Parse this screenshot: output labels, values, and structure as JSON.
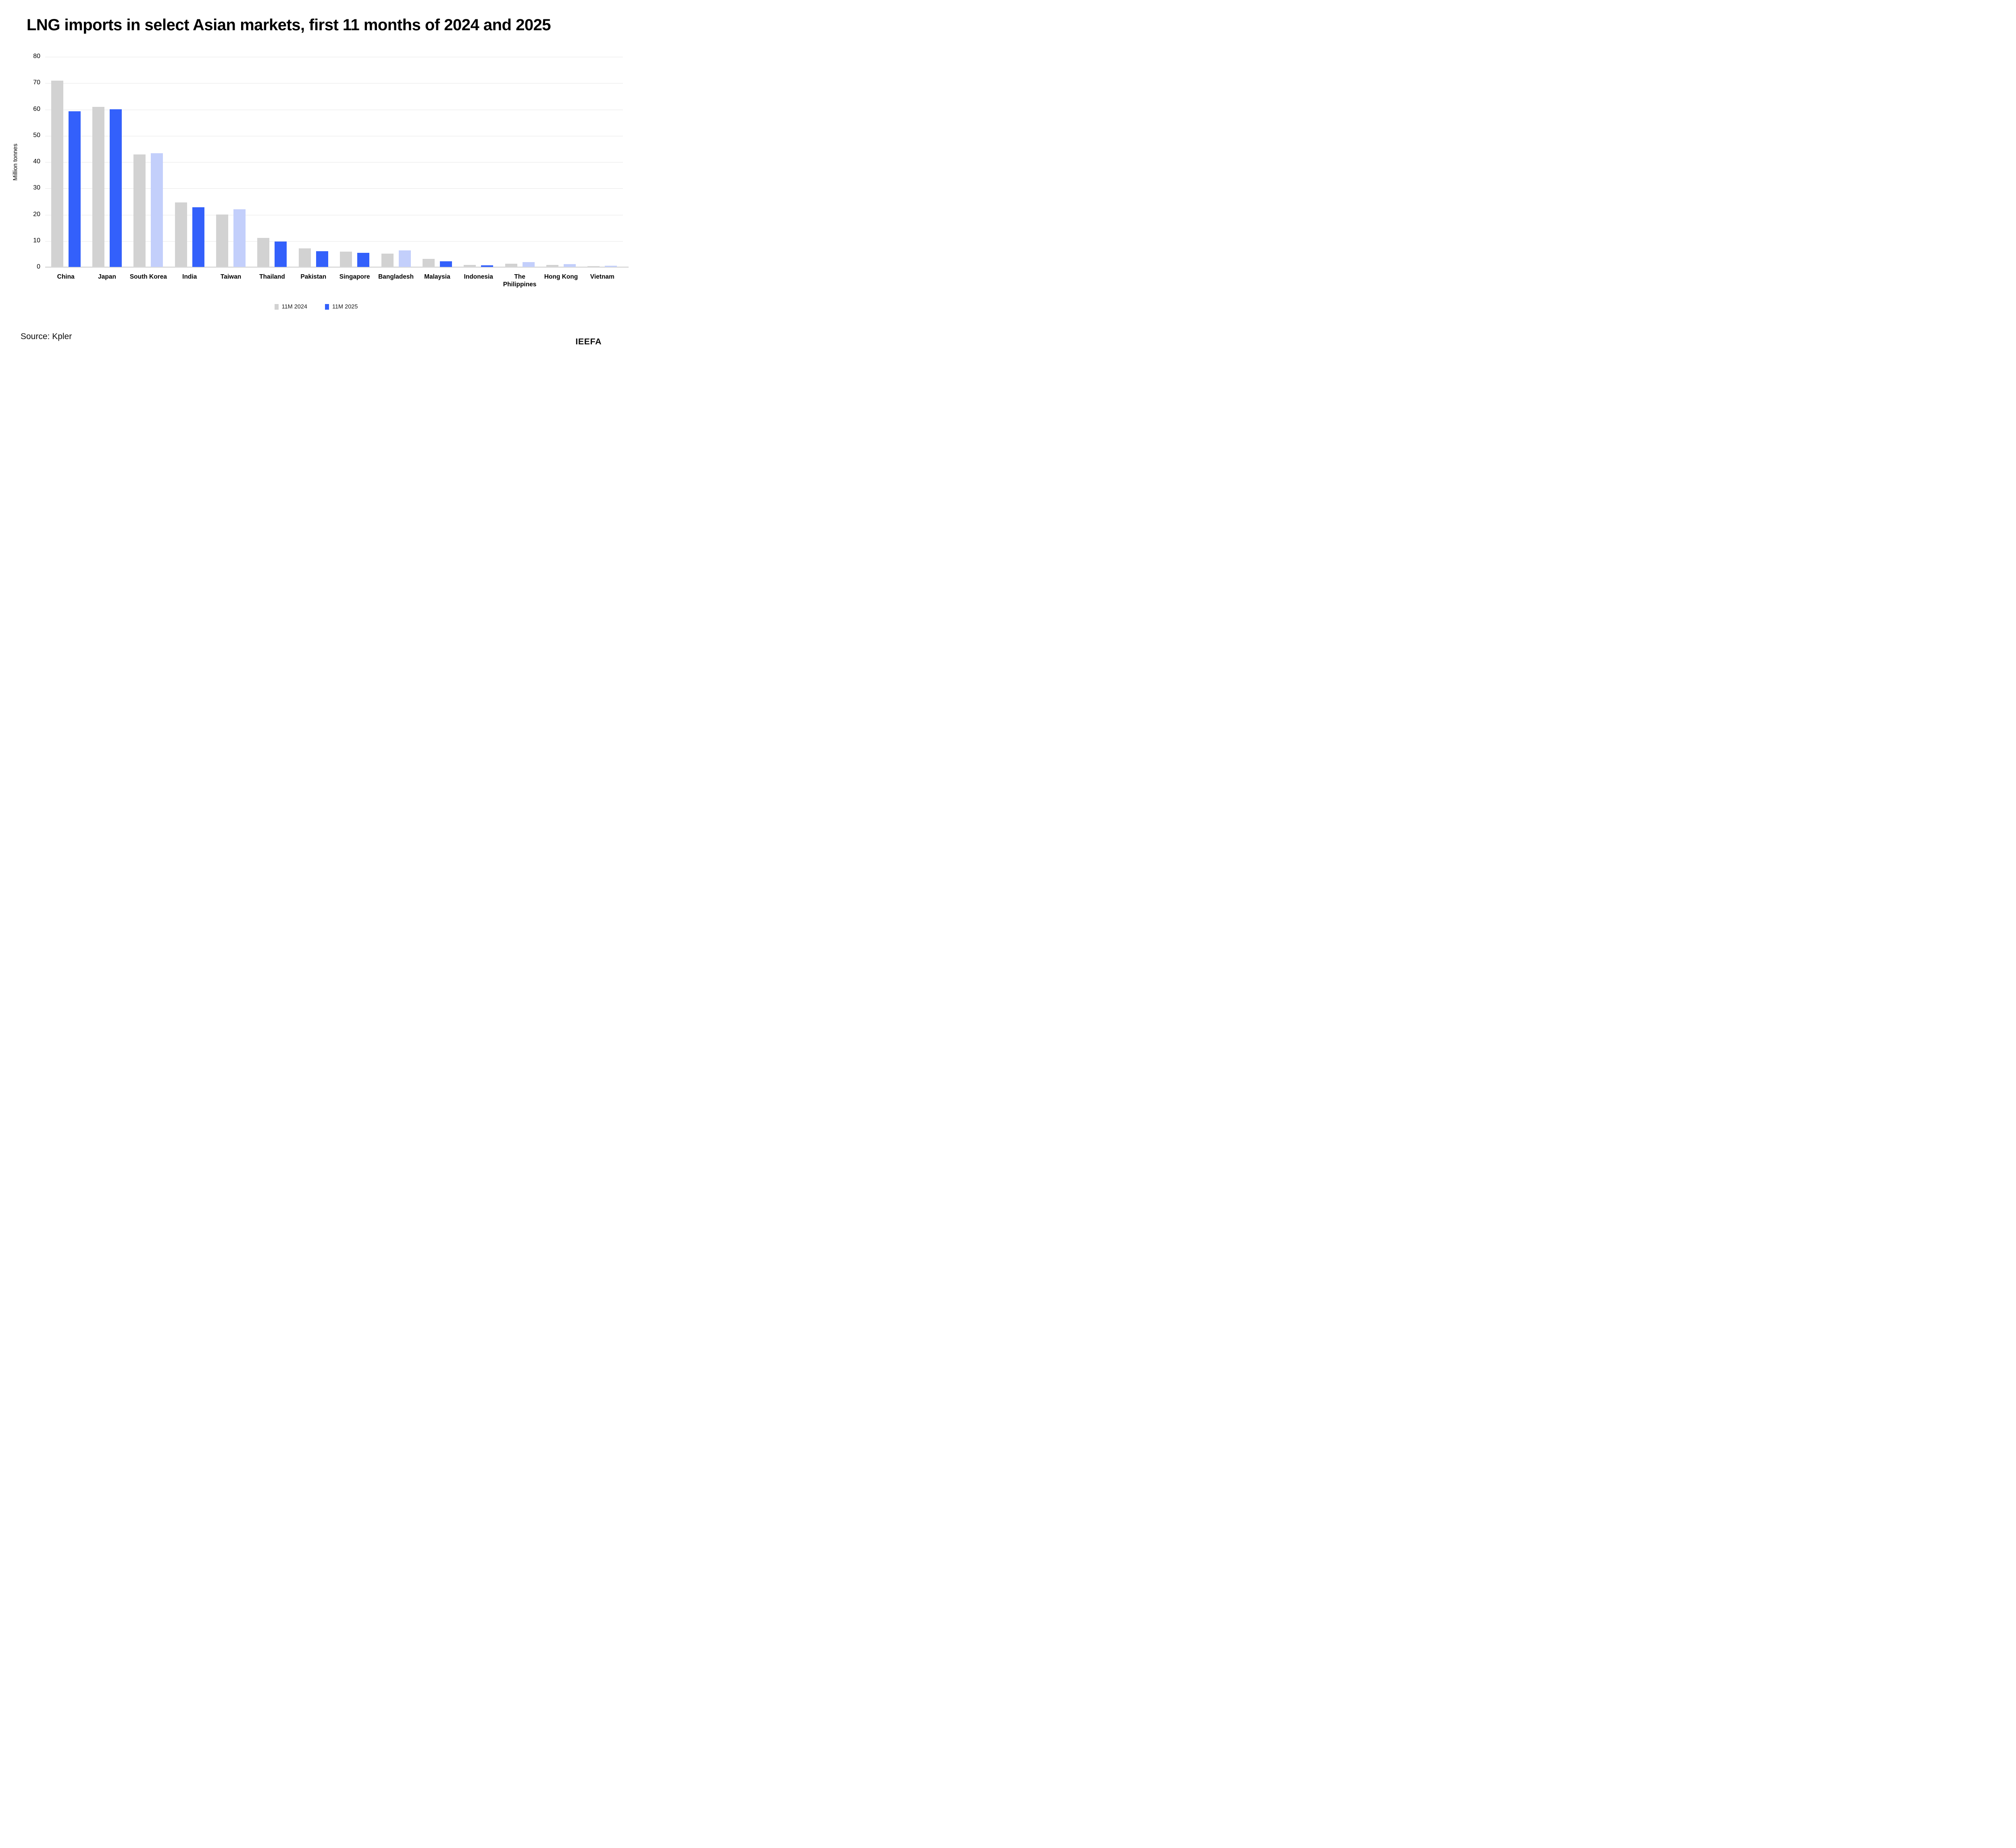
{
  "title": "LNG imports in select Asian markets, first 11 months of 2024 and 2025",
  "source": "Source: Kpler",
  "brand": "IEEFA",
  "colors": {
    "bar_2024": "#D2D2D2",
    "bar_2025_dark": "#3360FB",
    "bar_2025_light": "#C3CFFB",
    "gridline": "#E7E7E7",
    "baseline": "#DCDCDC",
    "text": "#000000"
  },
  "chart_data": {
    "type": "bar",
    "title": "LNG imports in select Asian markets, first 11 months of 2024 and 2025",
    "xlabel": "",
    "ylabel": "Million tonnes",
    "ylim": [
      0,
      80
    ],
    "yticks": [
      0,
      10,
      20,
      30,
      40,
      50,
      60,
      70,
      80
    ],
    "grid": true,
    "legend_position": "bottom-center",
    "categories": [
      "China",
      "Japan",
      "South Korea",
      "India",
      "Taiwan",
      "Thailand",
      "Pakistan",
      "Singapore",
      "Bangladesh",
      "Malaysia",
      "Indonesia",
      "The Philippines",
      "Hong Kong",
      "Vietnam"
    ],
    "series": [
      {
        "name": "11M 2024",
        "color": "#D2D2D2",
        "values": [
          70.8,
          60.9,
          42.8,
          24.6,
          19.9,
          11.0,
          7.1,
          5.8,
          5.1,
          3.1,
          0.8,
          1.2,
          0.8,
          0.3
        ]
      },
      {
        "name": "11M 2025",
        "color": "#3360FB",
        "color_when_increase": "#C3CFFB",
        "values": [
          59.2,
          59.9,
          43.2,
          22.7,
          21.9,
          9.6,
          6.0,
          5.4,
          6.3,
          2.1,
          0.6,
          1.8,
          1.1,
          0.4
        ],
        "bar_styles": [
          "dark",
          "dark",
          "light",
          "dark",
          "light",
          "dark",
          "dark",
          "dark",
          "light",
          "dark",
          "dark",
          "light",
          "light",
          "light"
        ]
      }
    ]
  }
}
